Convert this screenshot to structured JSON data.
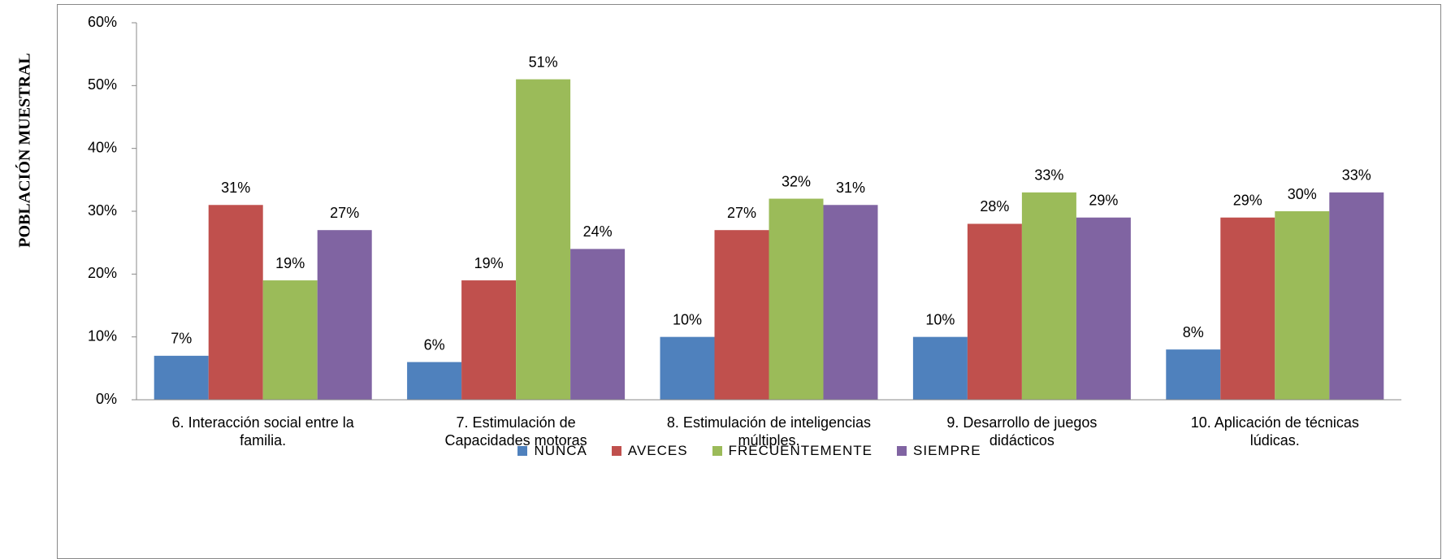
{
  "chart_data": {
    "type": "bar",
    "y_label": "POBLACIÓN MUESTRAL",
    "categories": [
      "6. Interacción social entre la familia.",
      "7. Estimulación de Capacidades motoras",
      "8. Estimulación de inteligencias múltiples.",
      "9. Desarrollo de juegos didácticos",
      "10. Aplicación de técnicas lúdicas."
    ],
    "series": [
      {
        "name": "NUNCA",
        "color": "#4f81bd",
        "values": [
          7,
          6,
          10,
          10,
          8
        ],
        "value_labels": [
          "7%",
          "6%",
          "10%",
          "10%",
          "8%"
        ]
      },
      {
        "name": "AVECES",
        "color": "#c0504d",
        "values": [
          31,
          19,
          27,
          28,
          29
        ],
        "value_labels": [
          "31%",
          "19%",
          "27%",
          "28%",
          "29%"
        ]
      },
      {
        "name": "FRECUENTEMENTE",
        "color": "#9bbb59",
        "values": [
          19,
          51,
          32,
          33,
          30
        ],
        "value_labels": [
          "19%",
          "51%",
          "32%",
          "33%",
          "30%"
        ]
      },
      {
        "name": "SIEMPRE",
        "color": "#8064a2",
        "values": [
          27,
          24,
          31,
          29,
          33
        ],
        "value_labels": [
          "27%",
          "24%",
          "31%",
          "29%",
          "33%"
        ]
      }
    ],
    "ylim": [
      0,
      60
    ],
    "yticks": [
      {
        "value": 0,
        "label": "0%"
      },
      {
        "value": 10,
        "label": "10%"
      },
      {
        "value": 20,
        "label": "20%"
      },
      {
        "value": 30,
        "label": "30%"
      },
      {
        "value": 40,
        "label": "40%"
      },
      {
        "value": 50,
        "label": "50%"
      },
      {
        "value": 60,
        "label": "60%"
      }
    ],
    "grid": false,
    "legend": "bottom"
  }
}
